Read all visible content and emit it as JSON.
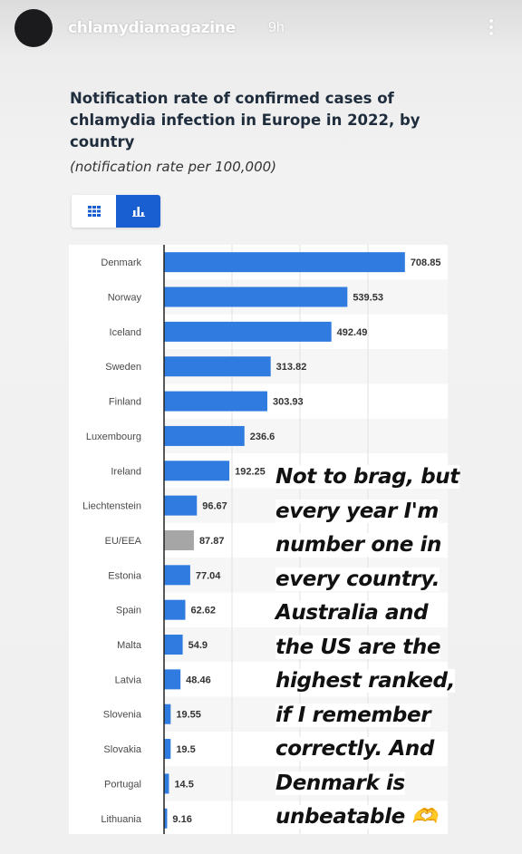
{
  "story": {
    "username": "chlamydiamagazine",
    "time": "9h"
  },
  "toggle": {
    "table_icon": "table-grid-icon",
    "chart_icon": "bar-chart-icon",
    "active": "chart"
  },
  "caption": {
    "lines": [
      "Not to brag, but",
      "every year I'm",
      "number one in",
      "every country.",
      "Australia and",
      "the US are the",
      "highest ranked,",
      "if I remember",
      "correctly. And",
      "Denmark is",
      "unbeatable 🫶"
    ]
  },
  "chart_data": {
    "type": "bar",
    "orientation": "horizontal",
    "title": "Notification rate of confirmed cases of chlamydia infection in Europe in 2022, by country",
    "subtitle": "(notification rate per 100,000)",
    "categories": [
      "Denmark",
      "Norway",
      "Iceland",
      "Sweden",
      "Finland",
      "Luxembourg",
      "Ireland",
      "Liechtenstein",
      "EU/EEA",
      "Estonia",
      "Spain",
      "Malta",
      "Latvia",
      "Slovenia",
      "Slovakia",
      "Portugal",
      "Lithuania"
    ],
    "values": [
      708.85,
      539.53,
      492.49,
      313.82,
      303.93,
      236.6,
      192.25,
      96.67,
      87.87,
      77.04,
      62.62,
      54.9,
      48.46,
      19.55,
      19.5,
      14.5,
      9.16
    ],
    "value_labels": [
      "708.85",
      "539.53",
      "492.49",
      "313.82",
      "303.93",
      "236.6",
      "192.25",
      "96.67",
      "87.87",
      "77.04",
      "62.62",
      "54.9",
      "48.46",
      "19.55",
      "19.5",
      "14.5",
      "9.16"
    ],
    "highlight_category": "EU/EEA",
    "bar_color": "#2f7be0",
    "highlight_color": "#a6a6a6",
    "xlim": [
      0,
      800
    ],
    "grid": true,
    "legend": "none"
  }
}
